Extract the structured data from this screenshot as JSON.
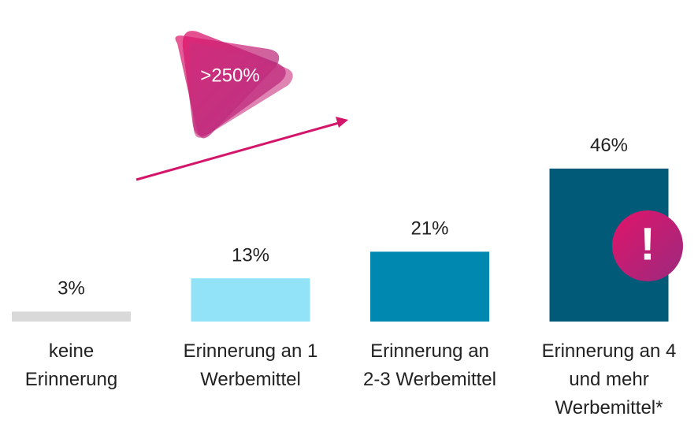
{
  "chart_data": {
    "type": "bar",
    "categories": [
      "keine\nErinnerung",
      "Erinnerung an 1\nWerbemittel",
      "Erinnerung an\n2-3 Werbemittel",
      "Erinnerung an 4\nund mehr\nWerbemittel*"
    ],
    "values": [
      3,
      13,
      21,
      46
    ],
    "value_labels": [
      "3%",
      "13%",
      "21%",
      "46%"
    ],
    "colors": [
      "#d9d9d9",
      "#93e3f8",
      "#0088b0",
      "#005a78"
    ],
    "annotations": [
      ">250%",
      "!"
    ]
  }
}
